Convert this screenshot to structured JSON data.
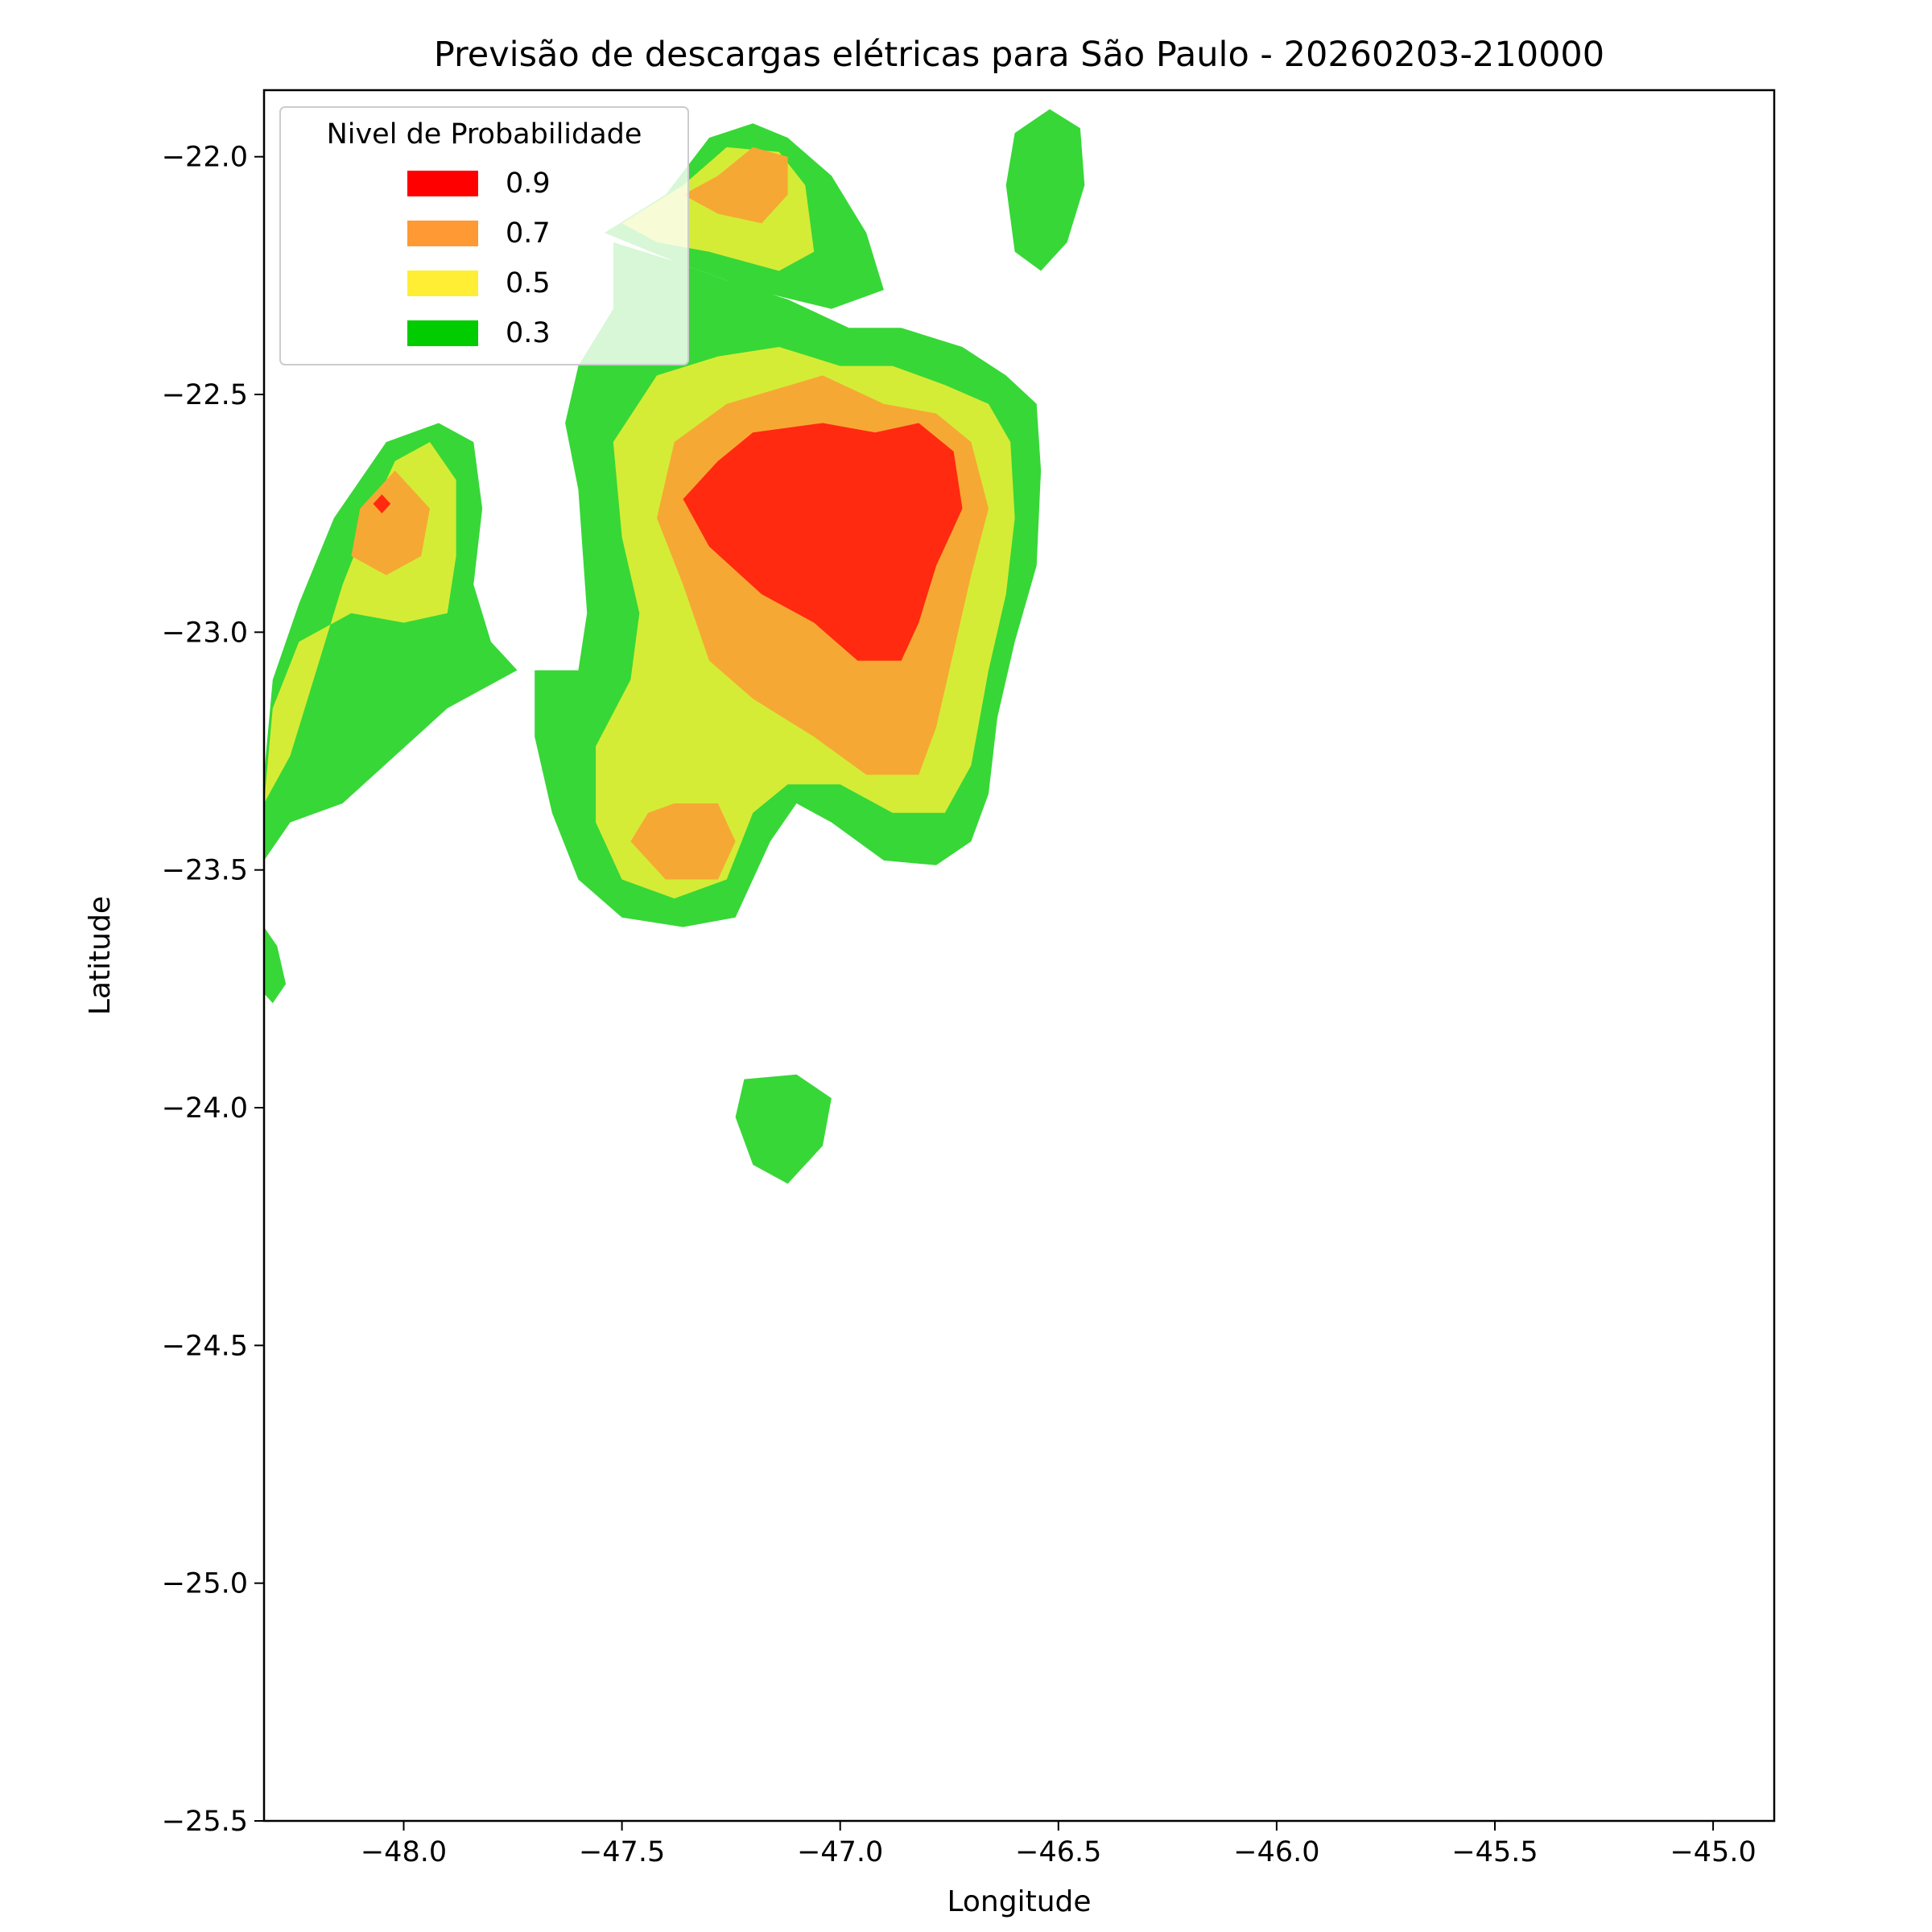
{
  "chart_data": {
    "type": "heatmap",
    "subtype": "filled-contour",
    "title": "Previsão de descargas elétricas para São Paulo - 20260203-210000",
    "xlabel": "Longitude",
    "ylabel": "Latitude",
    "xlim": [
      -48.32,
      -44.86
    ],
    "ylim": [
      -25.5,
      -21.86
    ],
    "x_ticks": [
      -48.0,
      -47.5,
      -47.0,
      -46.5,
      -46.0,
      -45.5,
      -45.0
    ],
    "x_tick_labels": [
      "−48.0",
      "−47.5",
      "−47.0",
      "−46.5",
      "−46.0",
      "−45.5",
      "−45.0"
    ],
    "y_ticks": [
      -22.0,
      -22.5,
      -23.0,
      -23.5,
      -24.0,
      -24.5,
      -25.0,
      -25.5
    ],
    "y_tick_labels": [
      "−22.0",
      "−22.5",
      "−23.0",
      "−23.5",
      "−24.0",
      "−24.5",
      "−25.0",
      "−25.5"
    ],
    "grid": false,
    "legend": {
      "title": "Nivel de Probabilidade",
      "placement": "upper-left",
      "entries": [
        {
          "label": "0.9",
          "level": 0.9,
          "color": "#ff0000"
        },
        {
          "label": "0.7",
          "level": 0.7,
          "color": "#ff9933"
        },
        {
          "label": "0.5",
          "level": 0.5,
          "color": "#ffee33"
        },
        {
          "label": "0.3",
          "level": 0.3,
          "color": "#00cc00"
        }
      ]
    },
    "fill_colors": {
      "0.3": "#37d737",
      "0.5": "#d5ec36",
      "0.7": "#f6a834",
      "0.9": "#ff2a10"
    },
    "regions": [
      {
        "level": 0.3,
        "points": [
          [
            -47.52,
            -22.18
          ],
          [
            -47.38,
            -22.22
          ],
          [
            -47.26,
            -22.26
          ],
          [
            -47.12,
            -22.3
          ],
          [
            -46.98,
            -22.36
          ],
          [
            -46.86,
            -22.36
          ],
          [
            -46.72,
            -22.4
          ],
          [
            -46.62,
            -22.46
          ],
          [
            -46.55,
            -22.52
          ],
          [
            -46.54,
            -22.66
          ],
          [
            -46.55,
            -22.86
          ],
          [
            -46.6,
            -23.02
          ],
          [
            -46.64,
            -23.18
          ],
          [
            -46.66,
            -23.34
          ],
          [
            -46.7,
            -23.44
          ],
          [
            -46.78,
            -23.49
          ],
          [
            -46.9,
            -23.48
          ],
          [
            -47.02,
            -23.4
          ],
          [
            -47.1,
            -23.36
          ],
          [
            -47.16,
            -23.44
          ],
          [
            -47.24,
            -23.6
          ],
          [
            -47.36,
            -23.62
          ],
          [
            -47.5,
            -23.6
          ],
          [
            -47.6,
            -23.52
          ],
          [
            -47.66,
            -23.38
          ],
          [
            -47.7,
            -23.22
          ],
          [
            -47.7,
            -23.08
          ],
          [
            -47.6,
            -23.08
          ],
          [
            -47.58,
            -22.96
          ],
          [
            -47.6,
            -22.7
          ],
          [
            -47.63,
            -22.56
          ],
          [
            -47.6,
            -22.44
          ],
          [
            -47.52,
            -22.32
          ]
        ]
      },
      {
        "level": 0.3,
        "points": [
          [
            -47.54,
            -22.16
          ],
          [
            -47.4,
            -22.08
          ],
          [
            -47.3,
            -21.96
          ],
          [
            -47.2,
            -21.93
          ],
          [
            -47.12,
            -21.96
          ],
          [
            -47.02,
            -22.04
          ],
          [
            -46.94,
            -22.16
          ],
          [
            -46.9,
            -22.28
          ],
          [
            -47.02,
            -22.32
          ],
          [
            -47.2,
            -22.28
          ],
          [
            -47.38,
            -22.22
          ]
        ]
      },
      {
        "level": 0.3,
        "points": [
          [
            -47.92,
            -22.56
          ],
          [
            -47.84,
            -22.6
          ],
          [
            -47.82,
            -22.74
          ],
          [
            -47.84,
            -22.9
          ],
          [
            -47.8,
            -23.02
          ],
          [
            -47.74,
            -23.08
          ],
          [
            -47.9,
            -23.16
          ],
          [
            -48.02,
            -23.26
          ],
          [
            -48.14,
            -23.36
          ],
          [
            -48.26,
            -23.4
          ],
          [
            -48.32,
            -23.48
          ],
          [
            -48.32,
            -23.3
          ],
          [
            -48.3,
            -23.1
          ],
          [
            -48.24,
            -22.94
          ],
          [
            -48.16,
            -22.76
          ],
          [
            -48.04,
            -22.6
          ]
        ]
      },
      {
        "level": 0.3,
        "points": [
          [
            -46.52,
            -21.9
          ],
          [
            -46.45,
            -21.94
          ],
          [
            -46.44,
            -22.06
          ],
          [
            -46.48,
            -22.18
          ],
          [
            -46.54,
            -22.24
          ],
          [
            -46.6,
            -22.2
          ],
          [
            -46.62,
            -22.06
          ],
          [
            -46.6,
            -21.95
          ]
        ]
      },
      {
        "level": 0.3,
        "points": [
          [
            -47.22,
            -23.94
          ],
          [
            -47.1,
            -23.93
          ],
          [
            -47.02,
            -23.98
          ],
          [
            -47.04,
            -24.08
          ],
          [
            -47.12,
            -24.16
          ],
          [
            -47.2,
            -24.12
          ],
          [
            -47.24,
            -24.02
          ]
        ]
      },
      {
        "level": 0.3,
        "points": [
          [
            -48.32,
            -23.62
          ],
          [
            -48.29,
            -23.66
          ],
          [
            -48.27,
            -23.74
          ],
          [
            -48.3,
            -23.78
          ],
          [
            -48.32,
            -23.76
          ]
        ]
      },
      {
        "level": 0.5,
        "points": [
          [
            -47.14,
            -22.4
          ],
          [
            -47.0,
            -22.44
          ],
          [
            -46.88,
            -22.44
          ],
          [
            -46.76,
            -22.48
          ],
          [
            -46.66,
            -22.52
          ],
          [
            -46.61,
            -22.6
          ],
          [
            -46.6,
            -22.76
          ],
          [
            -46.62,
            -22.92
          ],
          [
            -46.66,
            -23.08
          ],
          [
            -46.7,
            -23.28
          ],
          [
            -46.76,
            -23.38
          ],
          [
            -46.88,
            -23.38
          ],
          [
            -47.0,
            -23.32
          ],
          [
            -47.12,
            -23.32
          ],
          [
            -47.2,
            -23.38
          ],
          [
            -47.26,
            -23.52
          ],
          [
            -47.38,
            -23.56
          ],
          [
            -47.5,
            -23.52
          ],
          [
            -47.56,
            -23.4
          ],
          [
            -47.56,
            -23.24
          ],
          [
            -47.48,
            -23.1
          ],
          [
            -47.46,
            -22.96
          ],
          [
            -47.5,
            -22.8
          ],
          [
            -47.52,
            -22.6
          ],
          [
            -47.42,
            -22.46
          ],
          [
            -47.28,
            -22.42
          ]
        ]
      },
      {
        "level": 0.5,
        "points": [
          [
            -47.5,
            -22.14
          ],
          [
            -47.36,
            -22.06
          ],
          [
            -47.26,
            -21.98
          ],
          [
            -47.14,
            -21.99
          ],
          [
            -47.08,
            -22.06
          ],
          [
            -47.06,
            -22.2
          ],
          [
            -47.14,
            -22.24
          ],
          [
            -47.3,
            -22.2
          ],
          [
            -47.42,
            -22.18
          ]
        ]
      },
      {
        "level": 0.5,
        "points": [
          [
            -47.94,
            -22.6
          ],
          [
            -47.88,
            -22.68
          ],
          [
            -47.88,
            -22.84
          ],
          [
            -47.9,
            -22.96
          ],
          [
            -48.0,
            -22.98
          ],
          [
            -48.12,
            -22.96
          ],
          [
            -48.24,
            -23.02
          ],
          [
            -48.3,
            -23.16
          ],
          [
            -48.32,
            -23.36
          ],
          [
            -48.26,
            -23.26
          ],
          [
            -48.2,
            -23.08
          ],
          [
            -48.14,
            -22.9
          ],
          [
            -48.08,
            -22.76
          ],
          [
            -48.02,
            -22.64
          ]
        ]
      },
      {
        "level": 0.7,
        "points": [
          [
            -47.04,
            -22.46
          ],
          [
            -46.9,
            -22.52
          ],
          [
            -46.78,
            -22.54
          ],
          [
            -46.7,
            -22.6
          ],
          [
            -46.66,
            -22.74
          ],
          [
            -46.7,
            -22.88
          ],
          [
            -46.74,
            -23.04
          ],
          [
            -46.78,
            -23.2
          ],
          [
            -46.82,
            -23.3
          ],
          [
            -46.94,
            -23.3
          ],
          [
            -47.06,
            -23.22
          ],
          [
            -47.2,
            -23.14
          ],
          [
            -47.3,
            -23.06
          ],
          [
            -47.36,
            -22.9
          ],
          [
            -47.42,
            -22.76
          ],
          [
            -47.38,
            -22.6
          ],
          [
            -47.26,
            -22.52
          ]
        ]
      },
      {
        "level": 0.7,
        "points": [
          [
            -47.38,
            -23.36
          ],
          [
            -47.28,
            -23.36
          ],
          [
            -47.24,
            -23.44
          ],
          [
            -47.28,
            -23.52
          ],
          [
            -47.4,
            -23.52
          ],
          [
            -47.48,
            -23.44
          ],
          [
            -47.44,
            -23.38
          ]
        ]
      },
      {
        "level": 0.7,
        "points": [
          [
            -47.28,
            -22.04
          ],
          [
            -47.2,
            -21.98
          ],
          [
            -47.12,
            -22.0
          ],
          [
            -47.12,
            -22.08
          ],
          [
            -47.18,
            -22.14
          ],
          [
            -47.28,
            -22.12
          ],
          [
            -47.36,
            -22.08
          ]
        ]
      },
      {
        "level": 0.7,
        "points": [
          [
            -48.02,
            -22.66
          ],
          [
            -48.1,
            -22.74
          ],
          [
            -48.12,
            -22.84
          ],
          [
            -48.04,
            -22.88
          ],
          [
            -47.96,
            -22.84
          ],
          [
            -47.94,
            -22.74
          ]
        ]
      },
      {
        "level": 0.9,
        "points": [
          [
            -47.04,
            -22.56
          ],
          [
            -46.92,
            -22.58
          ],
          [
            -46.82,
            -22.56
          ],
          [
            -46.74,
            -22.62
          ],
          [
            -46.72,
            -22.74
          ],
          [
            -46.78,
            -22.86
          ],
          [
            -46.82,
            -22.98
          ],
          [
            -46.86,
            -23.06
          ],
          [
            -46.96,
            -23.06
          ],
          [
            -47.06,
            -22.98
          ],
          [
            -47.18,
            -22.92
          ],
          [
            -47.3,
            -22.82
          ],
          [
            -47.36,
            -22.72
          ],
          [
            -47.28,
            -22.64
          ],
          [
            -47.2,
            -22.58
          ]
        ]
      },
      {
        "level": 0.9,
        "points": [
          [
            -48.05,
            -22.71
          ],
          [
            -48.03,
            -22.73
          ],
          [
            -48.05,
            -22.75
          ],
          [
            -48.07,
            -22.73
          ]
        ]
      }
    ]
  }
}
